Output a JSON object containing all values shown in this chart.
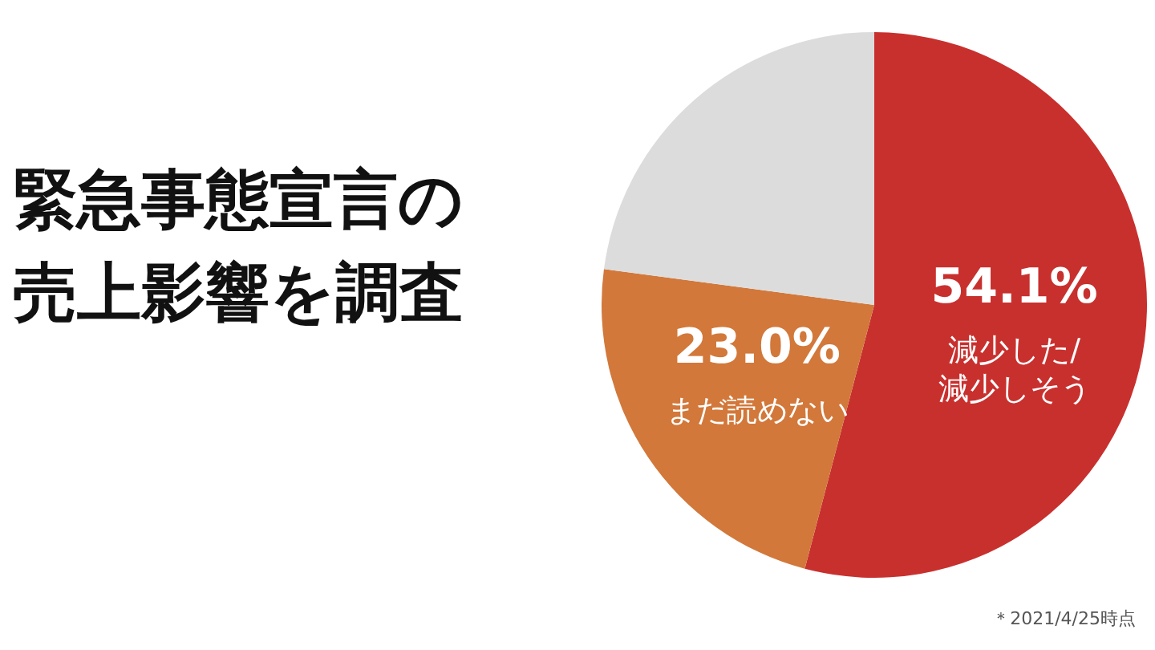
{
  "chart_data": {
    "type": "pie",
    "title": "緊急事態宣言の売上影響を調査",
    "categories": [
      "減少した/減少しそう",
      "まだ読めない",
      null
    ],
    "values": [
      54.1,
      23.0,
      22.9
    ],
    "colors": [
      "#c8302e",
      "#d2783a",
      "#dcdcdc"
    ],
    "value_labels": [
      "54.1%",
      "23.0%",
      null
    ],
    "annotations": [
      "＊2021/4/25時点"
    ]
  }
}
